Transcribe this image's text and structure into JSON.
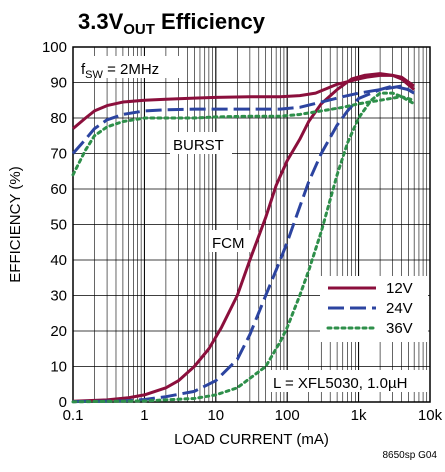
{
  "chart_data": {
    "type": "line",
    "title_main": "3.3V",
    "title_sub": "OUT",
    "title_rest": " Efficiency",
    "xlabel": "LOAD CURRENT (mA)",
    "ylabel": "EFFICIENCY (%)",
    "x_scale": "log",
    "xlim": [
      0.1,
      10000
    ],
    "ylim": [
      0,
      100
    ],
    "x_ticks": [
      {
        "value": 0.1,
        "label": "0.1"
      },
      {
        "value": 1,
        "label": "1"
      },
      {
        "value": 10,
        "label": "10"
      },
      {
        "value": 100,
        "label": "100"
      },
      {
        "value": 1000,
        "label": "1k"
      },
      {
        "value": 10000,
        "label": "10k"
      }
    ],
    "y_ticks": [
      {
        "value": 0,
        "label": "0"
      },
      {
        "value": 10,
        "label": "10"
      },
      {
        "value": 20,
        "label": "20"
      },
      {
        "value": 30,
        "label": "30"
      },
      {
        "value": 40,
        "label": "40"
      },
      {
        "value": 50,
        "label": "50"
      },
      {
        "value": 60,
        "label": "60"
      },
      {
        "value": 70,
        "label": "70"
      },
      {
        "value": 80,
        "label": "80"
      },
      {
        "value": 90,
        "label": "90"
      },
      {
        "value": 100,
        "label": "100"
      }
    ],
    "grid": true,
    "legend_position": "bottom-right",
    "annotations": {
      "fsw_prefix": "f",
      "fsw_sub": "SW",
      "fsw_rest": " = 2MHz",
      "burst": "BURST",
      "fcm": "FCM",
      "inductor": "L = XFL5030, 1.0µH",
      "code": "8650sp G04"
    },
    "series": [
      {
        "name": "12V",
        "color": "#8b0f3c",
        "dash": "solid",
        "burst": [
          [
            0.1,
            77
          ],
          [
            0.15,
            80
          ],
          [
            0.2,
            82
          ],
          [
            0.3,
            83.5
          ],
          [
            0.5,
            84.5
          ],
          [
            1,
            85
          ],
          [
            2,
            85.3
          ],
          [
            5,
            85.6
          ],
          [
            10,
            85.8
          ],
          [
            30,
            86
          ],
          [
            80,
            86
          ],
          [
            150,
            86.3
          ],
          [
            250,
            87
          ],
          [
            500,
            89.5
          ],
          [
            1000,
            91
          ],
          [
            1300,
            91.5
          ],
          [
            2000,
            92
          ],
          [
            3000,
            92
          ],
          [
            4000,
            91.5
          ],
          [
            6000,
            89
          ]
        ],
        "fcm": [
          [
            0.1,
            0.2
          ],
          [
            0.3,
            0.6
          ],
          [
            0.6,
            1.2
          ],
          [
            1,
            2
          ],
          [
            2,
            4
          ],
          [
            3,
            6
          ],
          [
            5,
            10
          ],
          [
            8,
            15
          ],
          [
            12,
            21
          ],
          [
            20,
            30
          ],
          [
            30,
            40
          ],
          [
            50,
            52
          ],
          [
            70,
            61
          ],
          [
            100,
            68
          ],
          [
            150,
            74
          ],
          [
            200,
            79
          ],
          [
            300,
            84
          ],
          [
            500,
            88
          ],
          [
            800,
            91
          ],
          [
            1200,
            92
          ],
          [
            2000,
            92.5
          ],
          [
            3000,
            92
          ],
          [
            4000,
            91
          ],
          [
            6000,
            88
          ]
        ]
      },
      {
        "name": "24V",
        "color": "#2c44a0",
        "dash": "long-dash",
        "burst": [
          [
            0.1,
            70
          ],
          [
            0.15,
            74
          ],
          [
            0.2,
            77
          ],
          [
            0.3,
            79.5
          ],
          [
            0.5,
            81
          ],
          [
            1,
            82
          ],
          [
            2,
            82.3
          ],
          [
            5,
            82.5
          ],
          [
            10,
            82.5
          ],
          [
            30,
            82.5
          ],
          [
            80,
            82.5
          ],
          [
            150,
            83
          ],
          [
            300,
            84.5
          ],
          [
            600,
            86
          ],
          [
            1000,
            87
          ],
          [
            2000,
            88
          ],
          [
            4000,
            89
          ],
          [
            6000,
            87
          ]
        ],
        "fcm": [
          [
            0.1,
            0.1
          ],
          [
            0.5,
            0.3
          ],
          [
            1,
            0.7
          ],
          [
            2,
            1.5
          ],
          [
            5,
            3
          ],
          [
            10,
            6
          ],
          [
            20,
            12
          ],
          [
            30,
            19
          ],
          [
            50,
            30
          ],
          [
            80,
            40
          ],
          [
            100,
            45
          ],
          [
            150,
            55
          ],
          [
            200,
            62
          ],
          [
            300,
            70
          ],
          [
            500,
            78
          ],
          [
            700,
            82
          ],
          [
            1000,
            85.5
          ],
          [
            2000,
            88
          ],
          [
            3000,
            89
          ],
          [
            5000,
            88
          ],
          [
            6000,
            87
          ]
        ]
      },
      {
        "name": "36V",
        "color": "#2e8f4a",
        "dash": "dotted",
        "burst": [
          [
            0.1,
            64
          ],
          [
            0.15,
            71
          ],
          [
            0.2,
            75
          ],
          [
            0.3,
            77.5
          ],
          [
            0.5,
            79
          ],
          [
            1,
            80
          ],
          [
            2,
            80
          ],
          [
            5,
            80
          ],
          [
            10,
            80.3
          ],
          [
            30,
            80.5
          ],
          [
            80,
            80.5
          ],
          [
            150,
            81
          ],
          [
            300,
            82
          ],
          [
            600,
            83
          ],
          [
            1000,
            84
          ],
          [
            2000,
            85
          ],
          [
            4000,
            86
          ],
          [
            6000,
            85
          ]
        ],
        "fcm": [
          [
            0.1,
            0.05
          ],
          [
            1,
            0.3
          ],
          [
            5,
            1
          ],
          [
            10,
            2
          ],
          [
            20,
            4
          ],
          [
            50,
            10
          ],
          [
            80,
            17
          ],
          [
            100,
            21
          ],
          [
            150,
            30
          ],
          [
            200,
            37
          ],
          [
            300,
            48
          ],
          [
            400,
            57
          ],
          [
            500,
            64
          ],
          [
            700,
            73
          ],
          [
            1000,
            80
          ],
          [
            1500,
            85
          ],
          [
            2000,
            87
          ],
          [
            3000,
            87
          ],
          [
            4000,
            86
          ],
          [
            6000,
            84
          ]
        ]
      }
    ]
  }
}
